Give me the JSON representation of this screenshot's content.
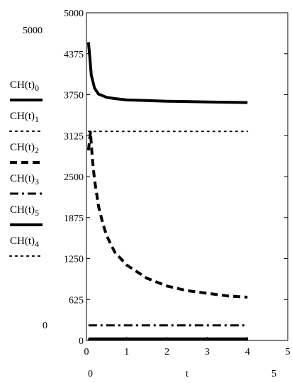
{
  "chart_data": {
    "type": "line",
    "xlabel": "t",
    "x_ticks": [
      "0",
      "1",
      "2",
      "3",
      "4",
      "5"
    ],
    "y_ticks": [
      "0",
      "625",
      "1250",
      "1875",
      "2500",
      "3125",
      "3750",
      "4375",
      "5000"
    ],
    "xlim": [
      0,
      5
    ],
    "ylim": [
      0,
      5000
    ],
    "corner_labels": {
      "y_top": "5000",
      "y_bottom": "0",
      "x_left": "0",
      "x_right": "5"
    },
    "series": [
      {
        "name": "CH(t)",
        "sub": "0",
        "style": "solid-thick",
        "x": [
          0.05,
          0.08,
          0.12,
          0.2,
          0.3,
          0.5,
          0.7,
          1.0,
          1.5,
          2.0,
          3.0,
          4.0
        ],
        "y": [
          4550,
          4350,
          4050,
          3850,
          3760,
          3710,
          3690,
          3670,
          3660,
          3650,
          3640,
          3630
        ]
      },
      {
        "name": "CH(t)",
        "sub": "1",
        "style": "dotted",
        "x": [
          0.05,
          4.0
        ],
        "y": [
          3190,
          3190
        ]
      },
      {
        "name": "CH(t)",
        "sub": "2",
        "style": "dashed",
        "x": [
          0.05,
          0.1,
          0.12,
          0.15,
          0.2,
          0.3,
          0.4,
          0.5,
          0.7,
          1.0,
          1.5,
          2.0,
          2.5,
          3.0,
          3.5,
          4.0
        ],
        "y": [
          2900,
          3180,
          3000,
          2750,
          2450,
          2050,
          1800,
          1600,
          1350,
          1150,
          950,
          830,
          760,
          720,
          680,
          660
        ]
      },
      {
        "name": "CH(t)",
        "sub": "3",
        "style": "dashdot",
        "x": [
          0.05,
          4.0
        ],
        "y": [
          230,
          230
        ]
      },
      {
        "name": "CH(t)",
        "sub": "5",
        "style": "solid-thick",
        "x": [
          0.05,
          4.0
        ],
        "y": [
          25,
          25
        ]
      },
      {
        "name": "CH(t)",
        "sub": "4",
        "style": "dotted",
        "x": [
          0.05,
          4.0
        ],
        "y": [
          15,
          15
        ]
      }
    ]
  }
}
